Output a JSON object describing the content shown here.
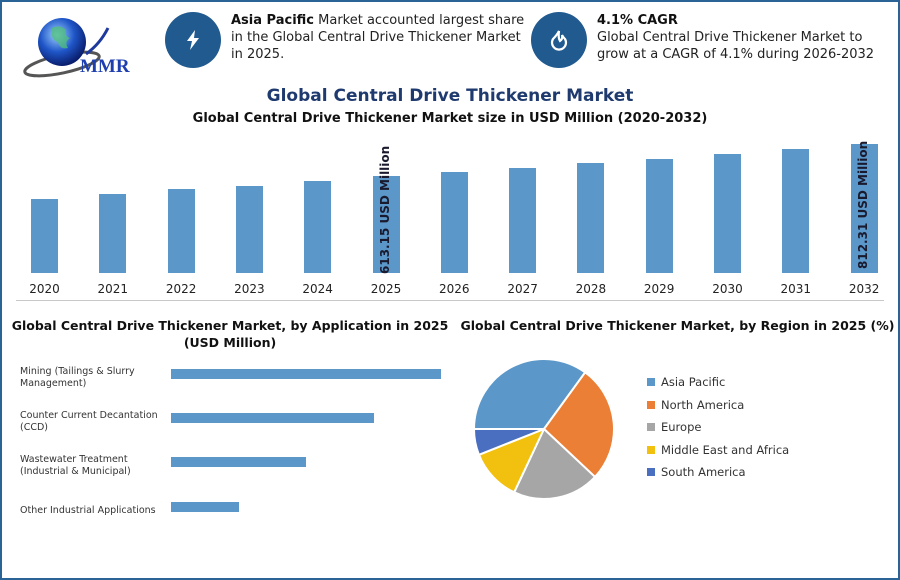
{
  "logo": {
    "text": "MMR",
    "icon": "globe-icon"
  },
  "highlights": [
    {
      "icon": "lightning-icon",
      "bold": "Asia Pacific",
      "text": " Market accounted largest share in the Global Central Drive Thickener Market in 2025."
    },
    {
      "icon": "flame-drop-icon",
      "bold": "4.1% CAGR",
      "text": "Global Central Drive Thickener Market to grow at a CAGR of 4.1% during 2026-2032"
    }
  ],
  "main_title": "Global Central Drive Thickener Market",
  "colors": {
    "bar": "#5b97c9",
    "title": "#1f3a6e",
    "border": "#2a6496",
    "icon_bg": "#205a8f"
  },
  "chart_data": [
    {
      "type": "bar",
      "title": "Global Central Drive Thickener Market size in USD Million (2020-2032)",
      "categories": [
        "2020",
        "2021",
        "2022",
        "2023",
        "2024",
        "2025",
        "2026",
        "2027",
        "2028",
        "2029",
        "2030",
        "2031",
        "2032"
      ],
      "values": [
        466,
        497,
        528,
        553,
        584,
        613.15,
        638,
        664,
        693,
        721,
        751,
        781,
        812.31
      ],
      "annotations": [
        {
          "category": "2025",
          "label": "613.15 USD Million"
        },
        {
          "category": "2032",
          "label": "812.31 USD Million"
        }
      ],
      "xlabel": "",
      "ylabel": "USD Million",
      "grid": false
    },
    {
      "type": "bar",
      "orientation": "horizontal",
      "title": "Global Central Drive Thickener Market, by Application in 2025 (USD Million)",
      "categories": [
        "Mining (Tailings & Slurry Management)",
        "Counter Current Decantation (CCD)",
        "Wastewater Treatment (Industrial & Municipal)",
        "Other Industrial Applications"
      ],
      "values": [
        270,
        203,
        135,
        68
      ],
      "value_units": "relative bar length (no axis shown)"
    },
    {
      "type": "pie",
      "title": "Global Central Drive Thickener Market, by Region in 2025 (%)",
      "categories": [
        "Asia Pacific",
        "North America",
        "Europe",
        "Middle East and Africa",
        "South America"
      ],
      "values": [
        35,
        27,
        20,
        12,
        6
      ],
      "colors": [
        "#5b97c9",
        "#ea7f35",
        "#a6a6a6",
        "#f2c10f",
        "#4a6fc0"
      ],
      "legend_position": "right"
    }
  ]
}
